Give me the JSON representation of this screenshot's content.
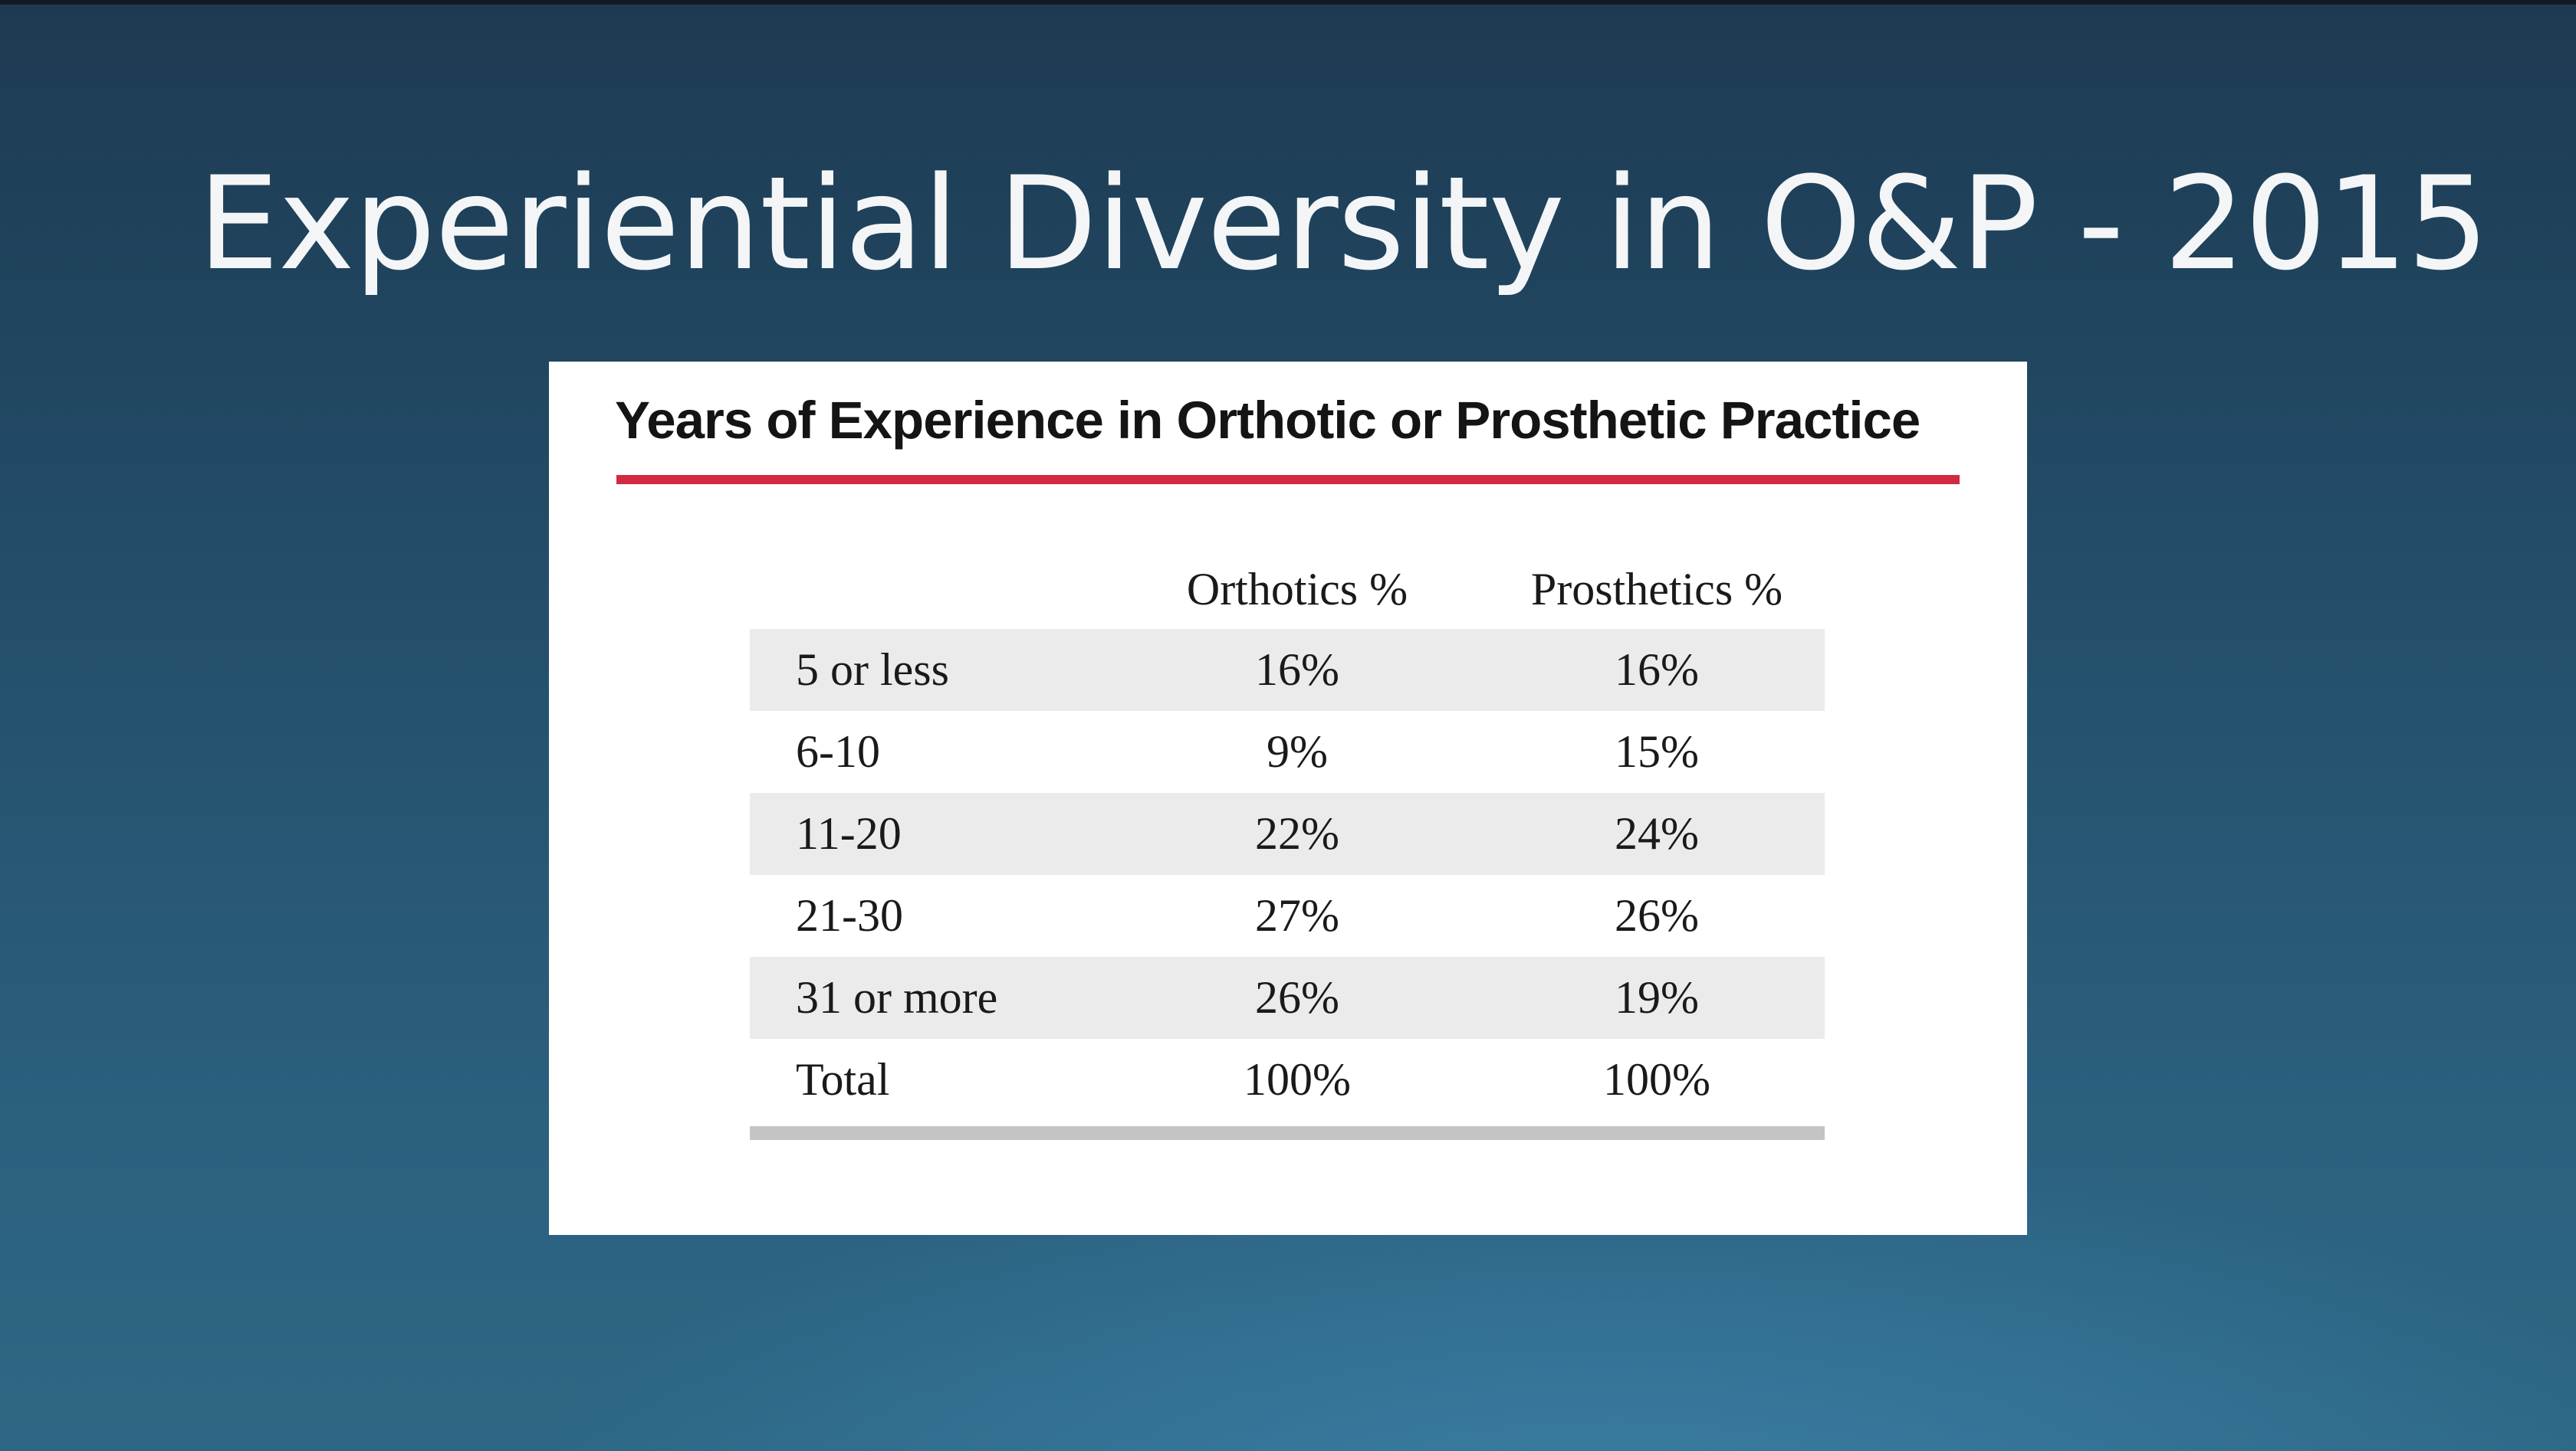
{
  "slide": {
    "title": "Experiential Diversity in O&P - 2015"
  },
  "figure": {
    "heading": "Years of Experience in Orthotic or Prosthetic Practice",
    "accent_color": "#d22a43",
    "columns": [
      "",
      "Orthotics %",
      "Prosthetics %"
    ],
    "rows": [
      {
        "label": "5 or less",
        "orthotics": "16%",
        "prosthetics": "16%"
      },
      {
        "label": "6-10",
        "orthotics": "9%",
        "prosthetics": "15%"
      },
      {
        "label": "11-20",
        "orthotics": "22%",
        "prosthetics": "24%"
      },
      {
        "label": "21-30",
        "orthotics": "27%",
        "prosthetics": "26%"
      },
      {
        "label": "31 or more",
        "orthotics": "26%",
        "prosthetics": "19%"
      },
      {
        "label": "Total",
        "orthotics": "100%",
        "prosthetics": "100%"
      }
    ]
  },
  "chart_data": {
    "type": "table",
    "title": "Years of Experience in Orthotic or Prosthetic Practice",
    "columns": [
      "",
      "Orthotics %",
      "Prosthetics %"
    ],
    "categories": [
      "5 or less",
      "6-10",
      "11-20",
      "21-30",
      "31 or more",
      "Total"
    ],
    "series": [
      {
        "name": "Orthotics %",
        "values": [
          16,
          9,
          22,
          27,
          26,
          100
        ]
      },
      {
        "name": "Prosthetics %",
        "values": [
          16,
          15,
          24,
          26,
          19,
          100
        ]
      }
    ]
  }
}
